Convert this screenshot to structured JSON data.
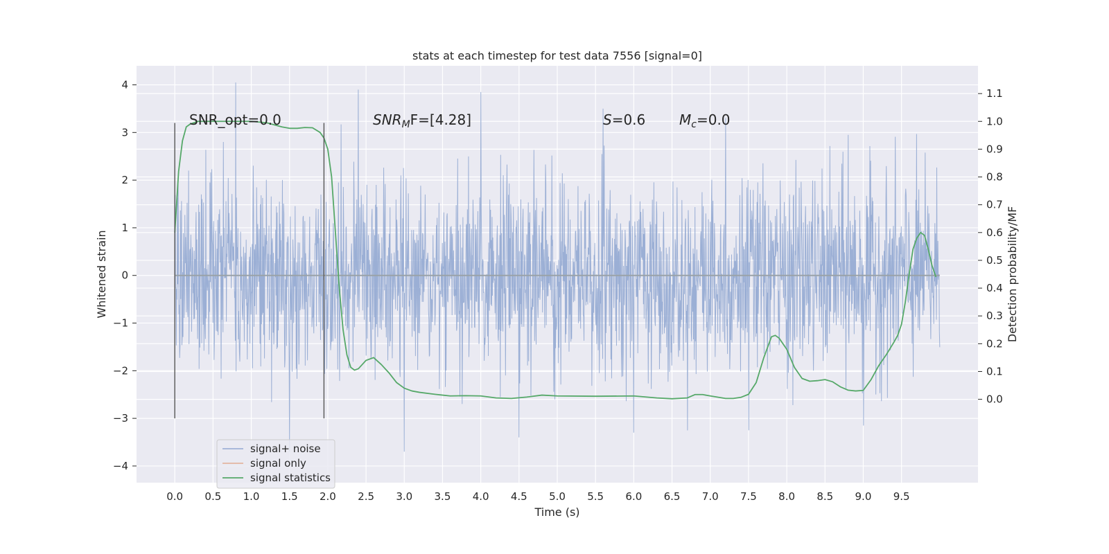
{
  "chart_data": {
    "type": "line",
    "title": "stats at each timestep for test data 7556 [signal=0]",
    "xlabel": "Time (s)",
    "ylabel": "Whitened strain",
    "ylabel_right": "Detection probability/MF",
    "xlim": [
      -0.5,
      10.5
    ],
    "ylim": [
      -4.35,
      4.4
    ],
    "ylim_right": [
      -0.3,
      1.2
    ],
    "x_ticks": [
      "0.0",
      "0.5",
      "1.0",
      "1.5",
      "2.0",
      "2.5",
      "3.0",
      "3.5",
      "4.0",
      "4.5",
      "5.0",
      "5.5",
      "6.0",
      "6.5",
      "7.0",
      "7.5",
      "8.0",
      "8.5",
      "9.0",
      "9.5"
    ],
    "y_ticks": [
      "4",
      "3",
      "2",
      "1",
      "0",
      "−1",
      "−2",
      "−3",
      "−4"
    ],
    "y_ticks_right": [
      "1.1",
      "1.0",
      "0.9",
      "0.8",
      "0.7",
      "0.6",
      "0.5",
      "0.4",
      "0.3",
      "0.2",
      "0.1",
      "0.0"
    ],
    "grid": true,
    "legend_position": "lower-left",
    "annotations": {
      "snr_opt": "SNR_opt=0.0",
      "snr_mf_main": "SNR",
      "snr_mf_sub": "M",
      "snr_mf_rest": "F=[4.28]",
      "s_italic": "S",
      "s_rest": "=0.6",
      "mc_main": "M",
      "mc_sub": "c",
      "mc_rest": "=0.0"
    },
    "markers": [
      {
        "x": 0.0,
        "y_range": [
          -3.0,
          3.2
        ]
      },
      {
        "x": 1.95,
        "y_range": [
          -3.0,
          3.2
        ]
      }
    ],
    "noise": {
      "x_range": [
        0.0,
        10.0
      ],
      "samples": 2048,
      "seed": 7556,
      "upper_peaks": [
        4.05,
        3.9,
        3.85,
        3.5,
        3.3,
        2.95
      ],
      "lower_peaks": [
        -3.7,
        -3.7,
        -3.4,
        -3.3,
        -3.25,
        -3.15
      ]
    },
    "series": [
      {
        "name": "signal+ noise",
        "axis": "left",
        "color": "#92a8d1",
        "style": "noise"
      },
      {
        "name": "signal only",
        "axis": "left",
        "color": "#dd8452",
        "x": [
          0.0,
          10.0
        ],
        "y": [
          0.0,
          0.0
        ]
      },
      {
        "name": "signal statistics",
        "axis": "right",
        "color": "#55a868",
        "x": [
          0.0,
          0.05,
          0.1,
          0.15,
          0.2,
          0.3,
          0.5,
          0.8,
          1.0,
          1.2,
          1.4,
          1.5,
          1.6,
          1.7,
          1.8,
          1.9,
          1.95,
          2.0,
          2.05,
          2.1,
          2.15,
          2.2,
          2.25,
          2.3,
          2.35,
          2.4,
          2.45,
          2.5,
          2.6,
          2.7,
          2.8,
          2.9,
          3.0,
          3.1,
          3.2,
          3.4,
          3.6,
          3.8,
          4.0,
          4.2,
          4.4,
          4.6,
          4.8,
          5.0,
          5.5,
          6.0,
          6.3,
          6.5,
          6.7,
          6.8,
          6.9,
          7.0,
          7.2,
          7.3,
          7.4,
          7.5,
          7.6,
          7.7,
          7.8,
          7.85,
          7.9,
          8.0,
          8.1,
          8.2,
          8.3,
          8.4,
          8.5,
          8.6,
          8.7,
          8.8,
          8.9,
          9.0,
          9.1,
          9.2,
          9.3,
          9.4,
          9.45,
          9.5,
          9.55,
          9.6,
          9.65,
          9.7,
          9.75,
          9.8,
          9.85,
          9.9,
          9.95
        ],
        "y": [
          0.6,
          0.82,
          0.93,
          0.98,
          0.99,
          1.0,
          1.0,
          1.0,
          1.0,
          0.995,
          0.98,
          0.975,
          0.975,
          0.978,
          0.977,
          0.96,
          0.94,
          0.9,
          0.8,
          0.6,
          0.4,
          0.25,
          0.16,
          0.115,
          0.105,
          0.11,
          0.125,
          0.14,
          0.15,
          0.125,
          0.095,
          0.06,
          0.04,
          0.03,
          0.025,
          0.018,
          0.012,
          0.013,
          0.012,
          0.005,
          0.003,
          0.008,
          0.015,
          0.012,
          0.011,
          0.012,
          0.005,
          0.002,
          0.005,
          0.017,
          0.017,
          0.012,
          0.003,
          0.003,
          0.007,
          0.018,
          0.06,
          0.15,
          0.225,
          0.23,
          0.22,
          0.18,
          0.115,
          0.075,
          0.065,
          0.067,
          0.071,
          0.063,
          0.045,
          0.033,
          0.03,
          0.032,
          0.07,
          0.12,
          0.16,
          0.205,
          0.23,
          0.27,
          0.35,
          0.45,
          0.54,
          0.58,
          0.6,
          0.59,
          0.54,
          0.48,
          0.44
        ]
      }
    ]
  }
}
